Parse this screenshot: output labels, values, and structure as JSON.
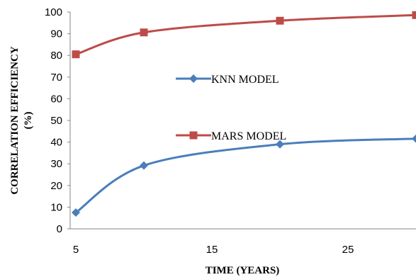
{
  "chart_data": {
    "type": "line",
    "title": "",
    "xlabel": "TIME (YEARS)",
    "ylabel_line1": "CORRELATION EFFICIENCY",
    "ylabel_line2": "(%)",
    "xlim": [
      5,
      30
    ],
    "ylim": [
      0,
      100
    ],
    "xticks": [
      5,
      15,
      25
    ],
    "yticks": [
      0,
      10,
      20,
      30,
      40,
      50,
      60,
      70,
      80,
      90,
      100
    ],
    "grid": false,
    "legend_position": "center",
    "series": [
      {
        "name": "KNN MODEL",
        "color": "#4a7ebb",
        "marker": "diamond",
        "x": [
          5,
          10,
          20,
          30
        ],
        "y": [
          7.5,
          29.2,
          39,
          41.6
        ]
      },
      {
        "name": "MARS MODEL",
        "color": "#be4b48",
        "marker": "square",
        "x": [
          5,
          10,
          20,
          30
        ],
        "y": [
          80.5,
          90.6,
          96,
          98.6
        ]
      }
    ]
  }
}
